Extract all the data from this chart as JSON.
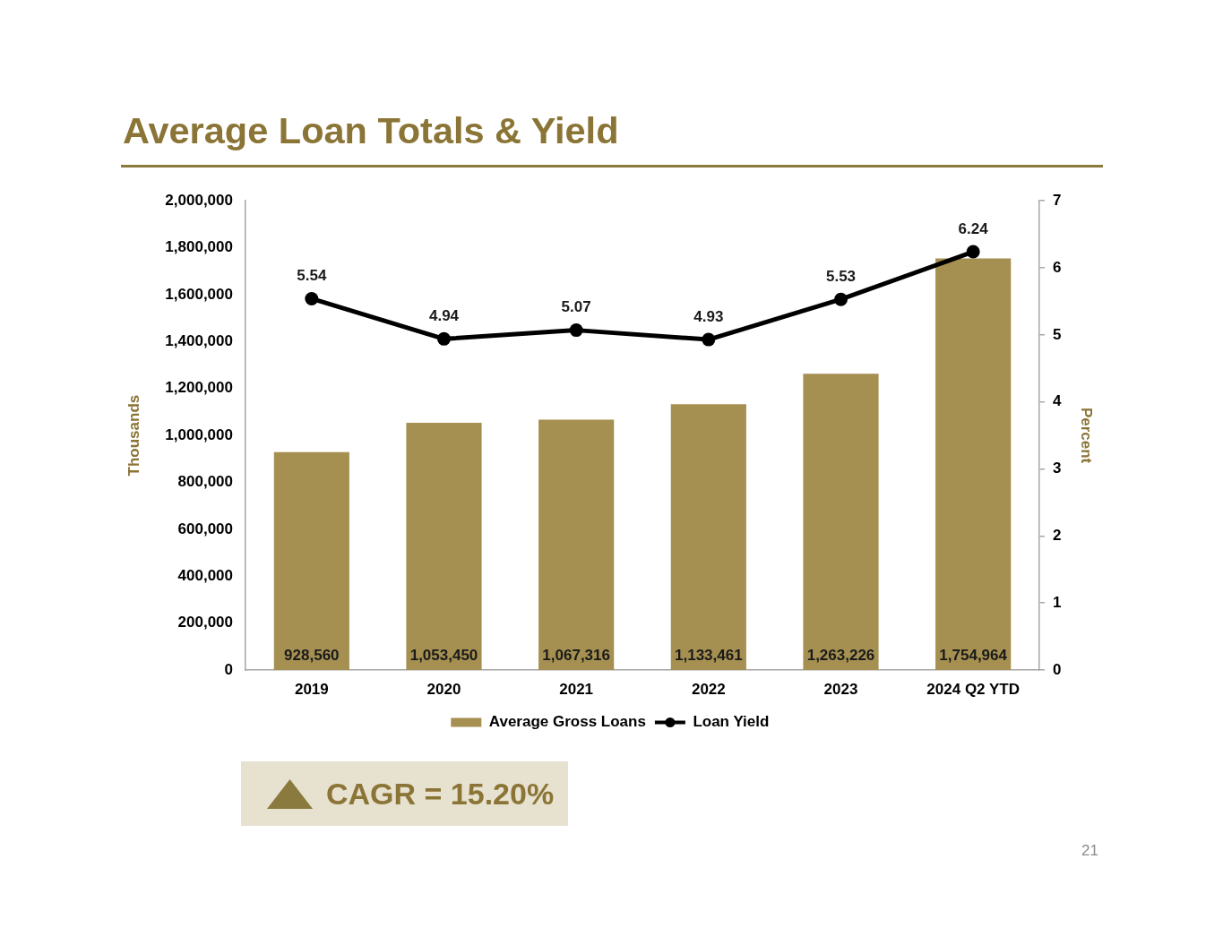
{
  "chart_data": {
    "type": "bar",
    "title": "Average Loan Totals & Yield",
    "ylabel": "Thousands",
    "y2label": "Percent",
    "categories": [
      "2019",
      "2020",
      "2021",
      "2022",
      "2023",
      "2024 Q2 YTD"
    ],
    "series": [
      {
        "name": "Average Gross Loans",
        "color": "#a59051",
        "values": [
          928560,
          1053450,
          1067316,
          1133461,
          1263226,
          1754964
        ],
        "value_labels": [
          "928,560",
          "1,053,450",
          "1,067,316",
          "1,133,461",
          "1,263,226",
          "1,754,964"
        ]
      },
      {
        "name": "Loan Yield",
        "type": "line",
        "axis": "y2",
        "color": "#000000",
        "values": [
          5.54,
          4.94,
          5.07,
          4.93,
          5.53,
          6.24
        ],
        "value_labels": [
          "5.54",
          "4.94",
          "5.07",
          "4.93",
          "5.53",
          "6.24"
        ]
      }
    ],
    "ylim": [
      0,
      2000000
    ],
    "yticks": [
      0,
      {
        "value": 200000,
        "label": "200,000"
      },
      {
        "value": 400000,
        "label": "400,000"
      },
      {
        "value": 600000,
        "label": "600,000"
      },
      {
        "value": 800000,
        "label": "800,000"
      },
      {
        "value": 1000000,
        "label": "1,000,000"
      },
      {
        "value": 1200000,
        "label": "1,200,000"
      },
      {
        "value": 1400000,
        "label": "1,400,000"
      },
      {
        "value": 1600000,
        "label": "1,600,000"
      },
      {
        "value": 1800000,
        "label": "1,800,000"
      },
      {
        "value": 2000000,
        "label": "2,000,000"
      }
    ],
    "y2lim": [
      0,
      7
    ],
    "y2ticks": [
      0,
      1,
      2,
      3,
      4,
      5,
      6,
      7
    ],
    "legend": "bottom",
    "marker": "circle",
    "line_style": "solid",
    "grid": false,
    "annotations": [
      "CAGR = 15.20%",
      "21"
    ]
  }
}
